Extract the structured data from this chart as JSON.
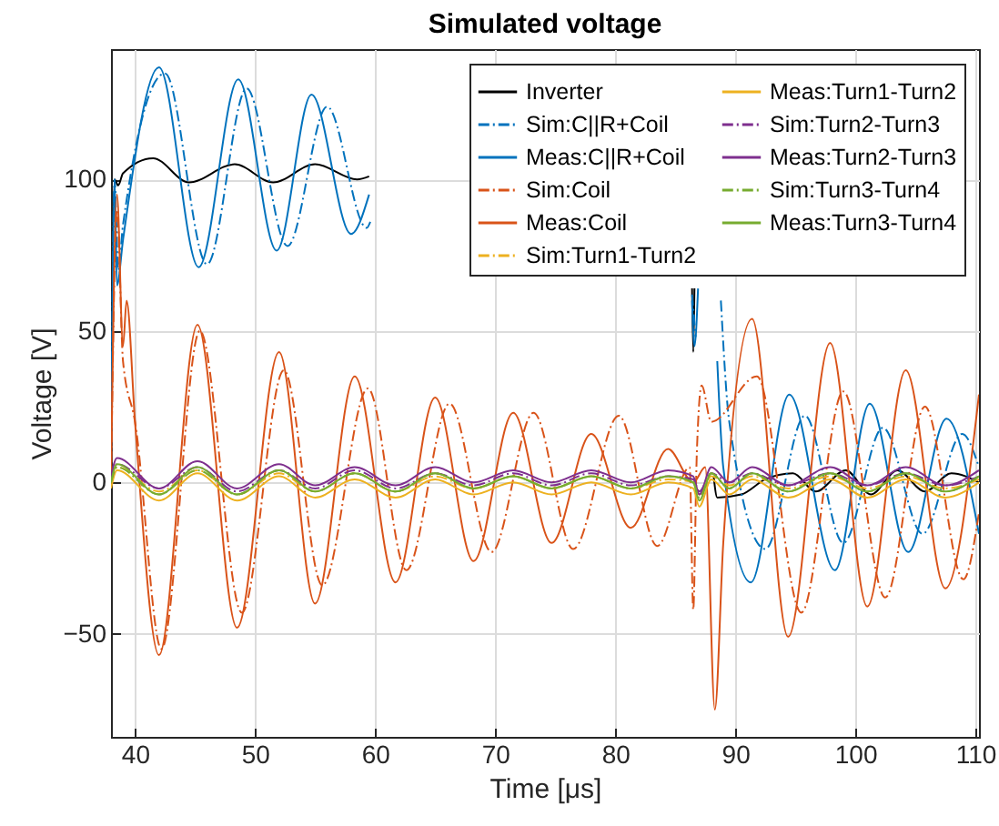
{
  "chart_data": {
    "type": "line",
    "title": "Simulated voltage",
    "xlabel": "Time [μs]",
    "ylabel": "Voltage [V]",
    "xlim": [
      38,
      110.3
    ],
    "ylim": [
      -84,
      143
    ],
    "xticks": [
      40,
      50,
      60,
      70,
      80,
      90,
      100,
      110
    ],
    "yticks": [
      -50,
      0,
      50,
      100
    ],
    "grid": true,
    "legend": "top right",
    "series": [
      {
        "name": "Inverter",
        "color": "#000000",
        "line_style": "solid",
        "x": [
          38,
          38.3,
          38.6,
          39,
          41.5,
          44.5,
          48.3,
          51.5,
          55,
          58.5,
          59.5,
          60,
          86.4,
          86.5,
          86.6,
          86.7,
          88.2,
          88.5,
          90.5,
          92.5,
          94.8,
          96.7,
          99.2,
          101.3,
          103.5,
          105.8,
          108,
          110.3
        ],
        "values": [
          0,
          100,
          98,
          102,
          107,
          99,
          105,
          99,
          105,
          100,
          101,
          null,
          64,
          43,
          64,
          null,
          2,
          -5,
          -4,
          1,
          3,
          -3,
          4,
          -4,
          4,
          -3,
          3,
          0
        ]
      },
      {
        "name": "Sim:C||R+Coil",
        "color": "#0072bd",
        "line_style": "dashed",
        "x": [
          38,
          38.3,
          38.6,
          39,
          42.5,
          46,
          49.3,
          52.7,
          56,
          59.3,
          59.6,
          60,
          86.4,
          86.7,
          87,
          88.3,
          88.8,
          89.5,
          92.5,
          95.8,
          99,
          102.3,
          105.6,
          108.9,
          110.3
        ],
        "values": [
          0,
          100,
          70,
          85,
          135,
          72,
          130,
          78,
          124,
          84,
          86,
          null,
          62,
          48,
          null,
          null,
          60,
          20,
          -22,
          22,
          -20,
          18,
          -17,
          16,
          5
        ]
      },
      {
        "name": "Meas:C||R+Coil",
        "color": "#0072bd",
        "line_style": "solid",
        "x": [
          38,
          38.3,
          38.5,
          39,
          42,
          45.3,
          48.6,
          51.8,
          54.7,
          58,
          59.5,
          60,
          86.4,
          86.6,
          86.9,
          87.2,
          88.2,
          88.5,
          89,
          91.3,
          94.5,
          98.3,
          101.2,
          104.4,
          107.6,
          110.3
        ],
        "values": [
          0,
          100,
          65,
          80,
          137,
          71,
          133,
          76.5,
          128,
          82,
          95,
          null,
          60,
          45,
          64,
          null,
          null,
          40,
          5,
          -33,
          29,
          -29,
          26,
          -23,
          21,
          -17
        ]
      },
      {
        "name": "Sim:Coil",
        "color": "#d95319",
        "line_style": "dashed",
        "x": [
          38,
          38.5,
          39,
          40,
          42.2,
          45.4,
          48.9,
          52.4,
          55.6,
          59.4,
          62.6,
          66.2,
          69.7,
          73.2,
          76.5,
          80.3,
          83.5,
          86.2,
          86.5,
          86.8,
          87.2,
          88,
          91.8,
          95.5,
          99,
          102.5,
          105.8,
          109,
          110.3
        ],
        "values": [
          0,
          90,
          40,
          20,
          -55,
          50,
          -43,
          37,
          -34,
          31,
          -29,
          26,
          -23,
          23,
          -22,
          22,
          -21,
          5,
          -42,
          10,
          32,
          20,
          35,
          -43,
          30,
          -38,
          25,
          -32,
          -10
        ]
      },
      {
        "name": "Meas:Coil",
        "color": "#d95319",
        "line_style": "solid",
        "x": [
          38,
          38.5,
          39,
          39.3,
          40,
          42,
          45.2,
          48.5,
          52,
          55,
          58.3,
          61.7,
          65,
          68.2,
          71.5,
          74.7,
          78,
          81.3,
          84.4,
          86.5,
          87.5,
          88.3,
          89,
          91.4,
          94.4,
          97.9,
          101,
          104.2,
          107.5,
          110.3
        ],
        "values": [
          0,
          95,
          45,
          60,
          20,
          -57,
          52,
          -48,
          43,
          -40,
          35,
          -33,
          28,
          -26,
          23,
          -20,
          16,
          -15,
          11,
          0,
          5,
          -75,
          -20,
          54,
          -51,
          46,
          -41,
          37,
          -35,
          29
        ]
      },
      {
        "name": "Sim:Turn1-Turn2",
        "color": "#edb120",
        "line_style": "dashed",
        "x": [
          38,
          38.5,
          42,
          45.2,
          48.5,
          52,
          55,
          58.3,
          61.7,
          65,
          68.2,
          71.5,
          74.7,
          78,
          81.3,
          84.4,
          86.5,
          87,
          88,
          89.5,
          91.4,
          94.4,
          97.9,
          101,
          104.2,
          107.5,
          110.3
        ],
        "values": [
          0,
          5,
          -3,
          4,
          -4,
          3,
          -3,
          3,
          -3,
          2,
          -2,
          2,
          -2,
          2,
          -2,
          1,
          0,
          -4,
          2,
          -1,
          2,
          -2,
          2,
          -2,
          2,
          -2,
          1
        ]
      },
      {
        "name": "Meas:Turn1-Turn2",
        "color": "#edb120",
        "line_style": "solid",
        "x": [
          38,
          38.5,
          42,
          45.2,
          48.5,
          52,
          55,
          58.3,
          61.7,
          65,
          68.2,
          71.5,
          74.7,
          78,
          81.3,
          84.4,
          86.5,
          87,
          88,
          89.5,
          91.4,
          94.4,
          97.9,
          101,
          104.2,
          107.5,
          110.3
        ],
        "values": [
          -2,
          4,
          -6,
          3,
          -6,
          2,
          -5,
          1,
          -5,
          1,
          -4,
          0,
          -4,
          0,
          -4,
          0,
          -2,
          -8,
          1,
          -4,
          1,
          -5,
          1,
          -5,
          1,
          -5,
          0
        ]
      },
      {
        "name": "Sim:Turn2-Turn3",
        "color": "#7e2f8e",
        "line_style": "dashed",
        "x": [
          38,
          38.5,
          42,
          45.2,
          48.5,
          52,
          55,
          58.3,
          61.7,
          65,
          68.2,
          71.5,
          74.7,
          78,
          81.3,
          84.4,
          86.5,
          87,
          88,
          89.5,
          91.4,
          94.4,
          97.9,
          101,
          104.2,
          107.5,
          110.3
        ],
        "values": [
          1,
          6,
          -2,
          5,
          -3,
          4,
          -2,
          4,
          -2,
          3,
          -1,
          3,
          -1,
          3,
          -1,
          2,
          1,
          -3,
          3,
          0,
          3,
          -1,
          3,
          -1,
          3,
          -1,
          2
        ]
      },
      {
        "name": "Meas:Turn2-Turn3",
        "color": "#7e2f8e",
        "line_style": "solid",
        "x": [
          38,
          38.5,
          42,
          45.2,
          48.5,
          52,
          55,
          58.3,
          61.7,
          65,
          68.2,
          71.5,
          74.7,
          78,
          81.3,
          84.4,
          86.5,
          87,
          88,
          89.5,
          91.4,
          94.4,
          97.9,
          101,
          104.2,
          107.5,
          110.3
        ],
        "values": [
          2,
          8,
          -2,
          7,
          -2,
          6,
          -1,
          5,
          -1,
          5,
          0,
          4,
          0,
          4,
          0,
          4,
          2,
          -4,
          5,
          0,
          5,
          -1,
          5,
          -1,
          5,
          -1,
          4
        ]
      },
      {
        "name": "Sim:Turn3-Turn4",
        "color": "#77ac30",
        "line_style": "dashed",
        "x": [
          38,
          38.5,
          42,
          45.2,
          48.5,
          52,
          55,
          58.3,
          61.7,
          65,
          68.2,
          71.5,
          74.7,
          78,
          81.3,
          84.4,
          86.5,
          87,
          88,
          89.5,
          91.4,
          94.4,
          97.9,
          101,
          104.2,
          107.5,
          110.3
        ],
        "values": [
          0,
          5,
          -4,
          4,
          -4,
          4,
          -3,
          3,
          -3,
          3,
          -2,
          2,
          -2,
          2,
          -2,
          2,
          0,
          -5,
          3,
          -2,
          3,
          -3,
          3,
          -3,
          3,
          -3,
          2
        ]
      },
      {
        "name": "Meas:Turn3-Turn4",
        "color": "#77ac30",
        "line_style": "solid",
        "x": [
          38,
          38.5,
          42,
          45.2,
          48.5,
          52,
          55,
          58.3,
          61.7,
          65,
          68.2,
          71.5,
          74.7,
          78,
          81.3,
          84.4,
          86.5,
          87,
          88,
          89.5,
          91.4,
          94.4,
          97.9,
          101,
          104.2,
          107.5,
          110.3
        ],
        "values": [
          0,
          6,
          -4,
          5,
          -4,
          4,
          -3,
          3,
          -3,
          3,
          -2,
          2,
          -2,
          2,
          -2,
          2,
          0,
          -6,
          3,
          -2,
          3,
          -3,
          3,
          -3,
          3,
          -3,
          2
        ]
      }
    ]
  }
}
